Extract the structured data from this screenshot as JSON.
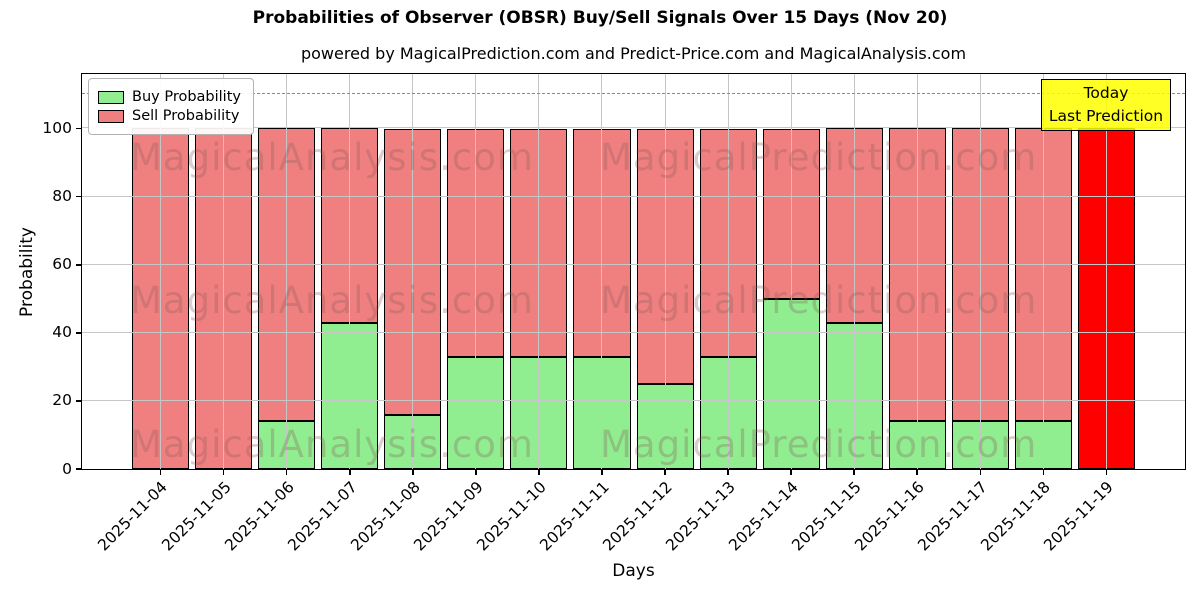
{
  "title": "Probabilities of Observer (OBSR) Buy/Sell Signals Over 15 Days (Nov 20)",
  "subtitle": "powered by MagicalPrediction.com and Predict-Price.com and MagicalAnalysis.com",
  "legend": {
    "items": [
      {
        "label": "Buy Probability",
        "color": "#90ee90"
      },
      {
        "label": "Sell Probability",
        "color": "#f08080"
      }
    ]
  },
  "annotation_box": {
    "line1": "Today",
    "line2": "Last Prediction",
    "bg_color": "#ffff00"
  },
  "watermarks": {
    "left": "MagicalAnalysis.com",
    "right": "MagicalPrediction.com"
  },
  "chart_data": {
    "type": "bar",
    "stacked": true,
    "title": "Probabilities of Observer (OBSR) Buy/Sell Signals Over 15 Days (Nov 20)",
    "xlabel": "Days",
    "ylabel": "Probability",
    "categories": [
      "2025-11-04",
      "2025-11-05",
      "2025-11-06",
      "2025-11-07",
      "2025-11-08",
      "2025-11-09",
      "2025-11-10",
      "2025-11-11",
      "2025-11-12",
      "2025-11-13",
      "2025-11-14",
      "2025-11-15",
      "2025-11-16",
      "2025-11-17",
      "2025-11-18",
      "2025-11-19"
    ],
    "series": [
      {
        "name": "Buy Probability",
        "color": "#90ee90",
        "values": [
          0,
          0,
          14,
          43,
          16,
          33,
          33,
          33,
          25,
          33,
          50,
          43,
          14,
          14,
          14,
          0
        ]
      },
      {
        "name": "Sell Probability",
        "color": "#f08080",
        "values": [
          100,
          100,
          86,
          57,
          84,
          67,
          67,
          67,
          75,
          67,
          50,
          57,
          86,
          86,
          86,
          100
        ]
      }
    ],
    "today_index": 15,
    "today_sell_color": "#ff0000",
    "yticks": [
      0,
      20,
      40,
      60,
      80,
      100
    ],
    "ylim": [
      0,
      116
    ],
    "dashed_line_y": 110,
    "grid": true,
    "legend_position": "upper left"
  }
}
